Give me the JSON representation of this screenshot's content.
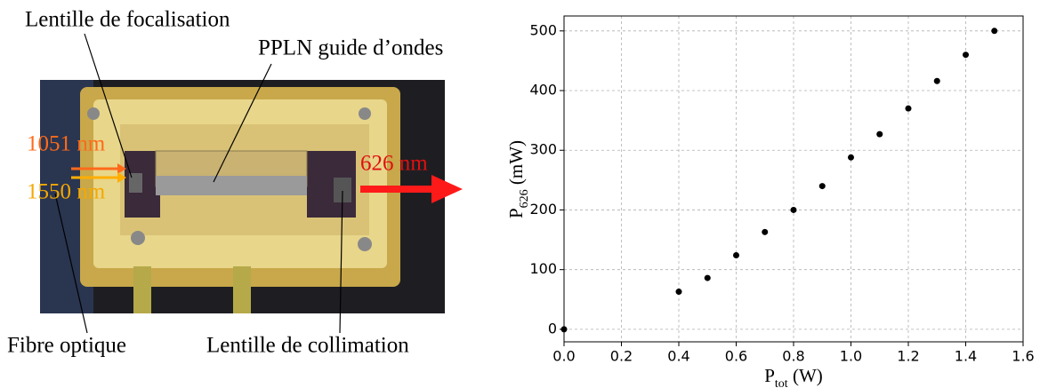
{
  "photo_labels": {
    "focusing_lens": "Lentille de focalisation",
    "waveguide": "PPLN guide d’ondes",
    "pump_1051": "1051 nm",
    "pump_1550": "1550 nm",
    "output_626": "626 nm",
    "fiber": "Fibre optique",
    "collimating_lens": "Lentille de collimation"
  },
  "chart_data": {
    "type": "scatter",
    "xlabel": [
      "P",
      "tot",
      " (W)"
    ],
    "ylabel": [
      "P",
      "626",
      " (mW)"
    ],
    "x": [
      0,
      0.4,
      0.5,
      0.6,
      0.7,
      0.8,
      0.9,
      1.0,
      1.1,
      1.2,
      1.3,
      1.4,
      1.5
    ],
    "y": [
      0,
      63,
      86,
      124,
      163,
      200,
      240,
      288,
      327,
      370,
      416,
      460,
      500
    ],
    "color": "#000000",
    "xlim": [
      0,
      1.6
    ],
    "xticks": [
      {
        "value": 0,
        "label": "0.0"
      },
      0.2,
      0.4,
      0.6,
      0.8,
      {
        "value": 1,
        "label": "1.0"
      },
      1.2,
      1.4,
      1.6
    ],
    "ylim": [
      -21,
      525
    ],
    "yticks": [
      0,
      100,
      200,
      300,
      400,
      500
    ],
    "grid": true
  }
}
